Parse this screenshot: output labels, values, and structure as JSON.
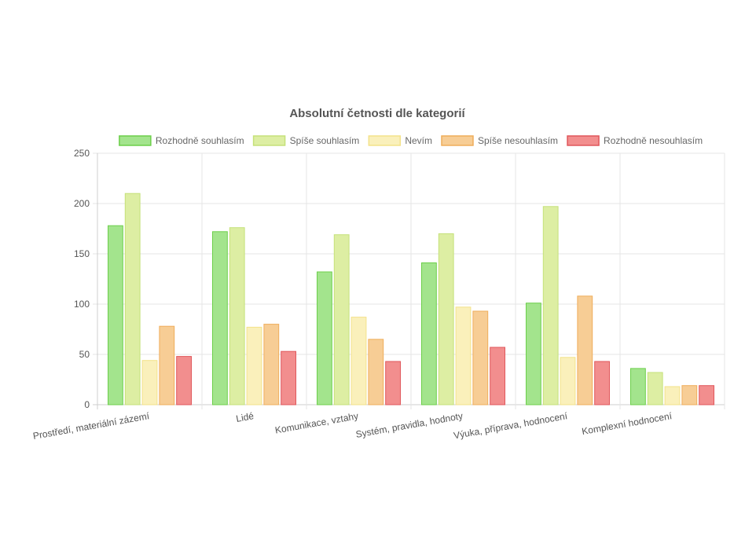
{
  "chart_data": {
    "type": "bar",
    "title": "Absolutní četnosti dle kategorií",
    "xlabel": "",
    "ylabel": "",
    "ylim": [
      0,
      250
    ],
    "yticks": [
      0,
      50,
      100,
      150,
      200,
      250
    ],
    "legend_position": "top",
    "grid": true,
    "categories": [
      "Prostředí, materiální zázemí",
      "Lidé",
      "Komunikace, vztahy",
      "Systém, pravidla, hodnoty",
      "Výuka, příprava, hodnocení",
      "Komplexní hodnocení"
    ],
    "series": [
      {
        "name": "Rozhodně souhlasím",
        "fill": "#a3e48d",
        "stroke": "#6ccf4a",
        "values": [
          178,
          172,
          132,
          141,
          101,
          36
        ]
      },
      {
        "name": "Spíše souhlasím",
        "fill": "#ddeea3",
        "stroke": "#c5e17a",
        "values": [
          210,
          176,
          169,
          170,
          197,
          32
        ]
      },
      {
        "name": "Nevím",
        "fill": "#faf0bb",
        "stroke": "#f3e28a",
        "values": [
          44,
          77,
          87,
          97,
          47,
          18
        ]
      },
      {
        "name": "Spíše nesouhlasím",
        "fill": "#f7cd95",
        "stroke": "#efad5a",
        "values": [
          78,
          80,
          65,
          93,
          108,
          19
        ]
      },
      {
        "name": "Rozhodně nesouhlasím",
        "fill": "#f28e8e",
        "stroke": "#e0575b",
        "values": [
          48,
          53,
          43,
          57,
          43,
          19
        ]
      }
    ]
  }
}
